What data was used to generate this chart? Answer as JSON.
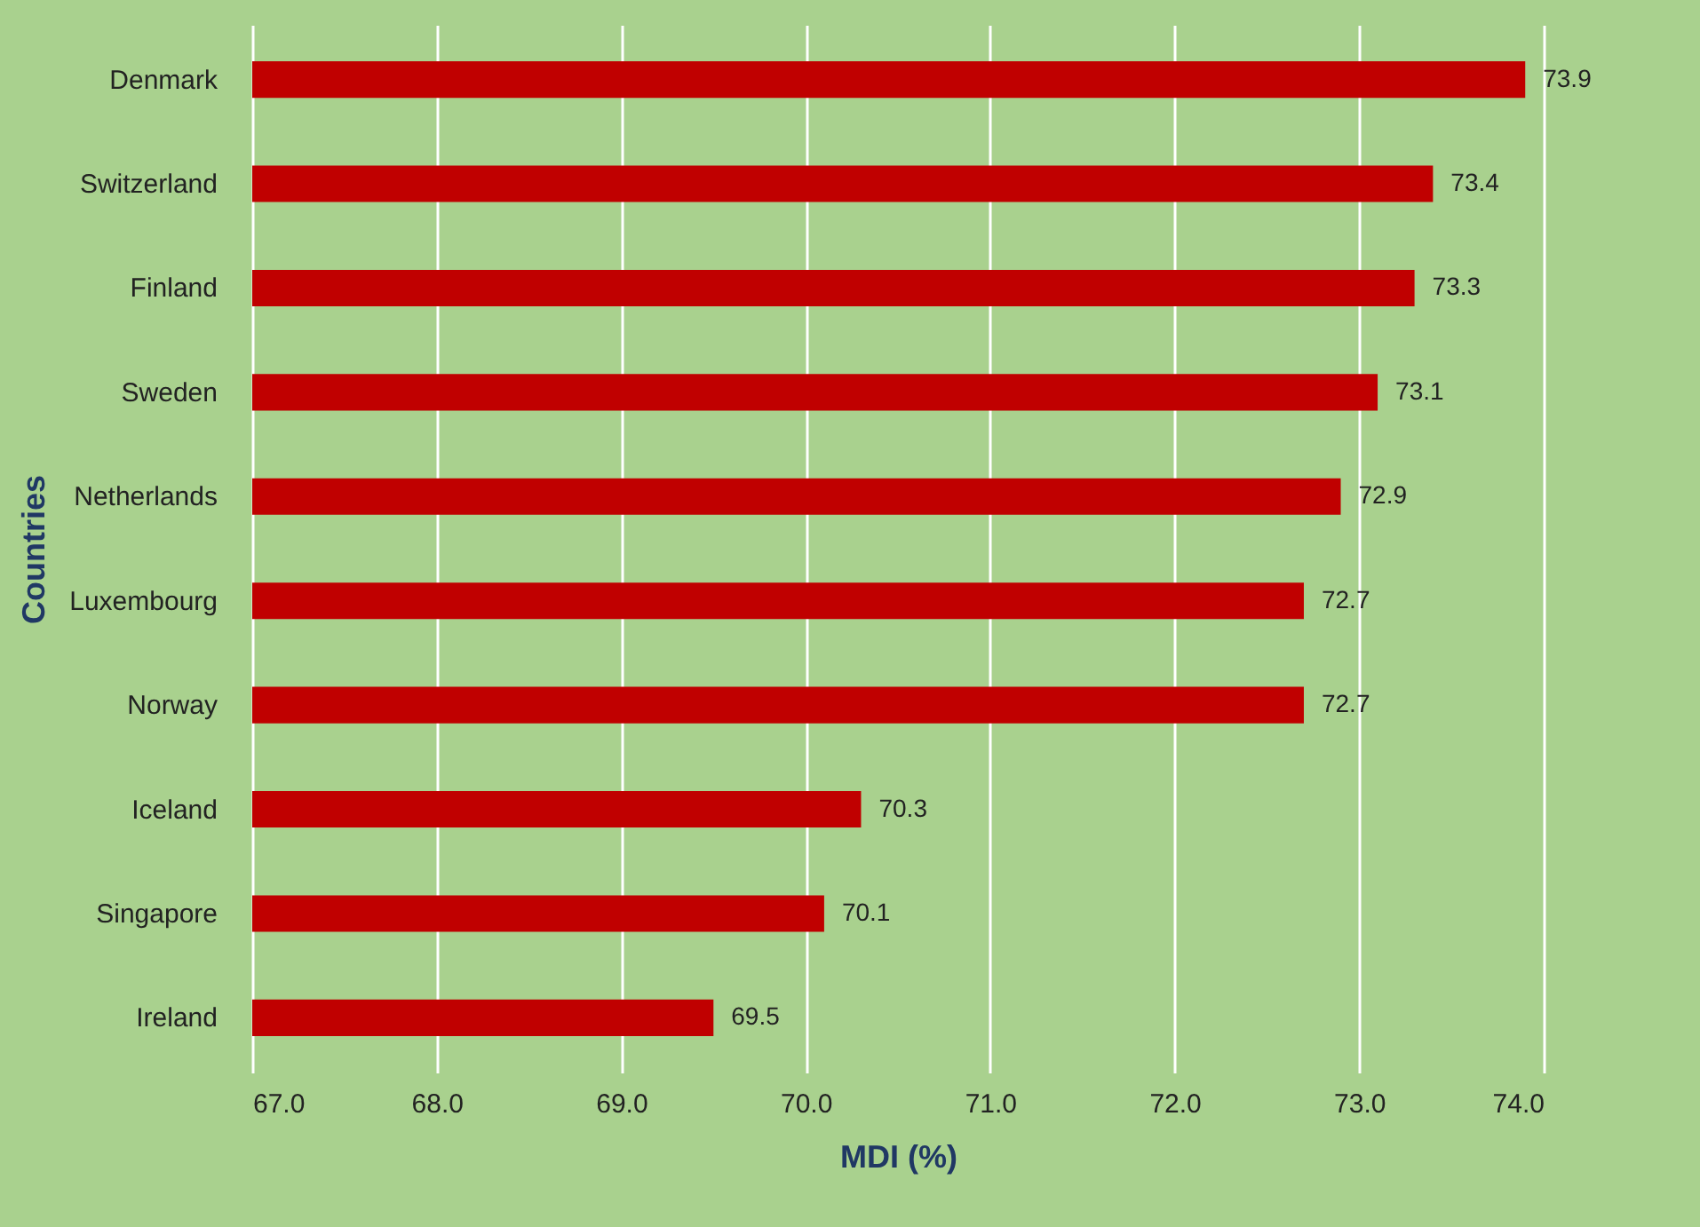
{
  "chart_data": {
    "type": "bar",
    "orientation": "horizontal",
    "xlabel": "MDI (%)",
    "ylabel": "Countries",
    "categories": [
      "Denmark",
      "Switzerland",
      "Finland",
      "Sweden",
      "Netherlands",
      "Luxembourg",
      "Norway",
      "Iceland",
      "Singapore",
      "Ireland"
    ],
    "values": [
      73.9,
      73.4,
      73.3,
      73.1,
      72.9,
      72.7,
      72.7,
      70.3,
      70.1,
      69.5
    ],
    "color": "#c00000",
    "xlim": [
      67,
      74
    ],
    "xticks": [
      {
        "value": 67,
        "label": "67.0"
      },
      {
        "value": 68,
        "label": "68.0"
      },
      {
        "value": 69,
        "label": "69.0"
      },
      {
        "value": 70,
        "label": "70.0"
      },
      {
        "value": 71,
        "label": "71.0"
      },
      {
        "value": 72,
        "label": "72.0"
      },
      {
        "value": 73,
        "label": "73.0"
      },
      {
        "value": 74,
        "label": "74.0"
      }
    ],
    "grid": "x",
    "data_labels": true
  }
}
